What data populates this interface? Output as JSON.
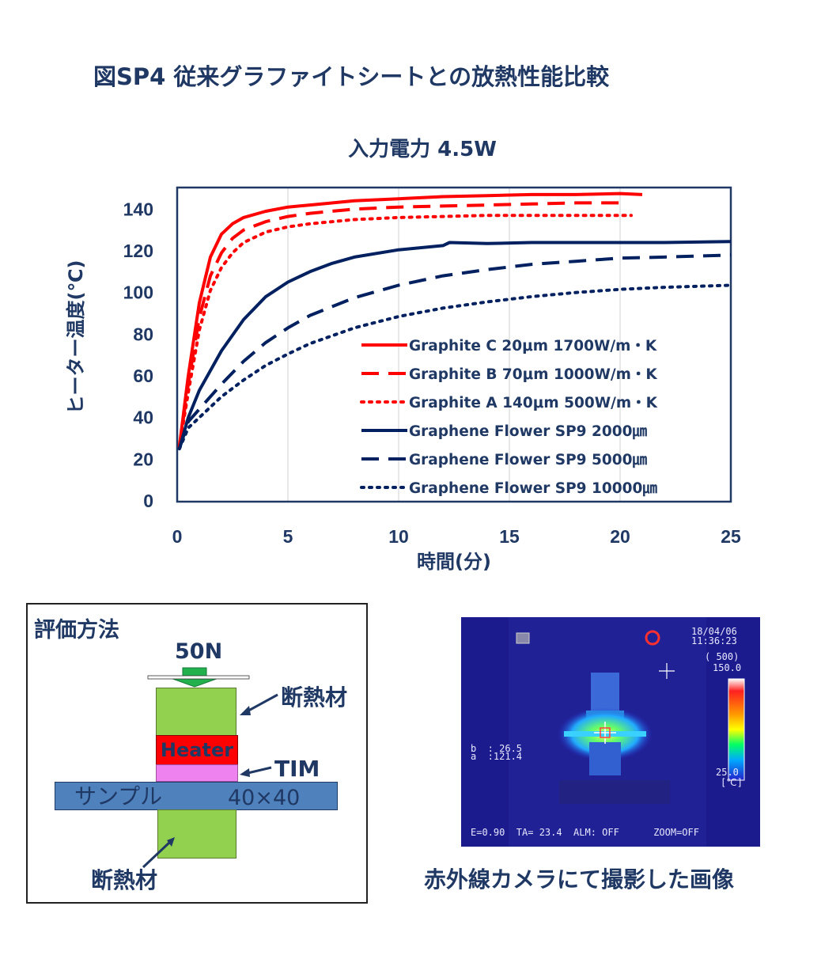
{
  "page_title": "図SP4  従来グラファイトシートとの放熱性能比較",
  "chart_data": {
    "type": "line",
    "title": "入力電力 4.5W",
    "xlabel": "時間(分)",
    "ylabel": "ヒーター温度(℃)",
    "xlim": [
      0,
      25
    ],
    "ylim": [
      0,
      150
    ],
    "xticks": [
      "0",
      "5",
      "10",
      "15",
      "20",
      "25"
    ],
    "yticks": [
      "0",
      "20",
      "40",
      "60",
      "80",
      "100",
      "120",
      "140"
    ],
    "grid": "vertical",
    "legend_position": "bottom-right",
    "series": [
      {
        "name": "Graphite C  20μm 1700W/m・K",
        "color": "#ff0000",
        "dash": "solid",
        "x": [
          0.1,
          0.5,
          1.0,
          1.5,
          2.0,
          2.5,
          3.0,
          4.0,
          5.0,
          6.0,
          8.0,
          10.0,
          12.0,
          14.0,
          16.0,
          18.0,
          20.0,
          21.0
        ],
        "y": [
          26,
          60,
          95,
          117,
          128,
          133,
          136,
          139,
          141,
          142,
          144,
          145,
          146,
          146.5,
          147,
          147,
          147.5,
          147
        ]
      },
      {
        "name": "Graphite B  70μm 1000W/m・K",
        "color": "#ff0000",
        "dash": "dashed",
        "x": [
          0.1,
          0.5,
          1.0,
          1.5,
          2.0,
          2.5,
          3.0,
          4.0,
          5.0,
          6.0,
          8.0,
          10.0,
          12.0,
          14.0,
          16.0,
          18.0,
          20.0
        ],
        "y": [
          26,
          56,
          88,
          108,
          119,
          126,
          130,
          134,
          136.5,
          138,
          140,
          141,
          141.5,
          142,
          142.5,
          143,
          143
        ]
      },
      {
        "name": "Graphite A 140μm  500W/m・K",
        "color": "#ff0000",
        "dash": "dotted",
        "x": [
          0.1,
          0.5,
          1.0,
          1.5,
          2.0,
          2.5,
          3.0,
          4.0,
          5.0,
          6.0,
          8.0,
          10.0,
          12.0,
          14.0,
          16.0,
          18.0,
          20.5
        ],
        "y": [
          26,
          52,
          82,
          101,
          112,
          119,
          124,
          129,
          131.5,
          133,
          135,
          136,
          136.5,
          137,
          137,
          137,
          137
        ]
      },
      {
        "name": "Graphene Flower SP9 2000㎛",
        "color": "#002060",
        "dash": "solid",
        "x": [
          0.1,
          0.5,
          1.0,
          2.0,
          3.0,
          4.0,
          5.0,
          6.0,
          7.0,
          8.0,
          10.0,
          12.0,
          12.3,
          14.0,
          16.0,
          18.0,
          20.0,
          22.0,
          25.0
        ],
        "y": [
          25,
          40,
          53,
          72,
          87,
          98,
          105,
          110,
          114,
          117,
          120.5,
          122.5,
          124,
          123.5,
          124,
          124,
          124,
          124,
          124.5
        ]
      },
      {
        "name": "Graphene Flower SP9 5000㎛",
        "color": "#002060",
        "dash": "dashed",
        "x": [
          0.1,
          0.5,
          1.0,
          2.0,
          3.0,
          4.0,
          5.0,
          6.0,
          8.0,
          10.0,
          12.0,
          14.0,
          16.0,
          18.0,
          20.0,
          22.0,
          25.0
        ],
        "y": [
          25,
          38,
          44,
          56,
          67,
          76,
          83,
          89,
          97.5,
          103.5,
          108,
          111,
          113.5,
          115,
          116.5,
          117,
          118
        ]
      },
      {
        "name": "Graphene Flower SP9 10000㎛",
        "color": "#002060",
        "dash": "dotted",
        "x": [
          0.1,
          0.5,
          1.0,
          2.0,
          3.0,
          4.0,
          5.0,
          6.0,
          8.0,
          10.0,
          12.0,
          14.0,
          16.0,
          18.0,
          20.0,
          22.0,
          25.0
        ],
        "y": [
          25,
          35,
          40,
          50,
          58,
          65,
          70.5,
          75.5,
          83,
          88.5,
          92.5,
          95.5,
          98,
          100,
          101.5,
          102.5,
          103.5
        ]
      }
    ]
  },
  "method": {
    "title": "評価方法",
    "force": "50N",
    "insulation_top": "断熱材",
    "heater": "Heater",
    "tim": "TIM",
    "sample": "サンプル",
    "sample_size": "40×40",
    "insulation_bottom": "断熱材"
  },
  "ir_image": {
    "caption": "赤外線カメラにて撮影した画像",
    "date": "18/04/06",
    "time": "11:36:23",
    "range_label": "( 500)",
    "scale_max": "150.0",
    "scale_min": "25.0",
    "unit": "[℃]",
    "marker_b": "b  : 26.5",
    "marker_a": "a  :121.4",
    "status_bar": "E=0.90  TA= 23.4  ALM: OFF      ZOOM=OFF"
  }
}
